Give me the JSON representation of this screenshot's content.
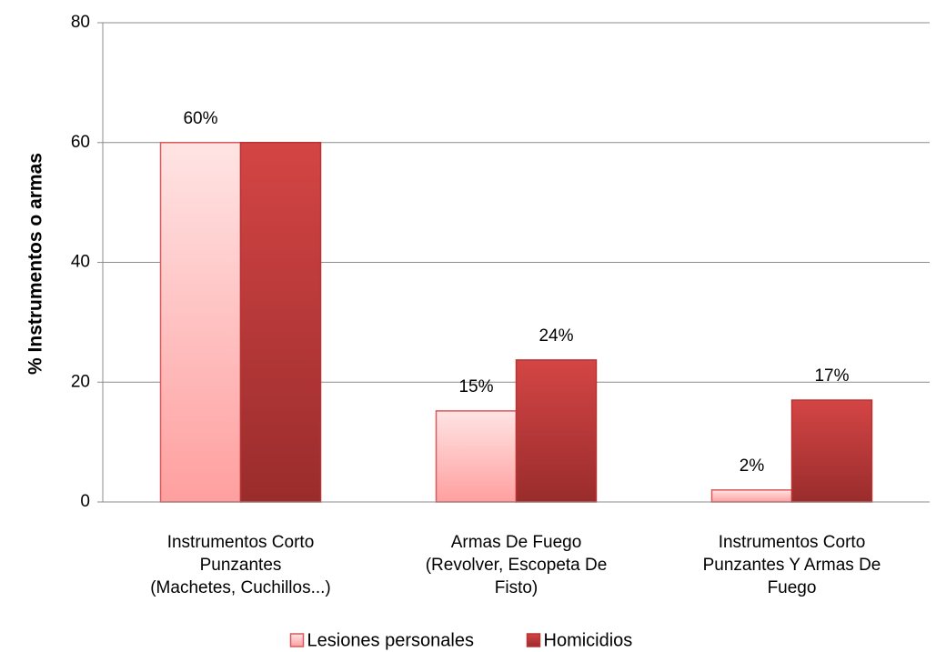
{
  "chart_data": {
    "type": "bar",
    "ylabel": "% Instrumentos o armas",
    "categories": [
      "Instrumentos Corto\nPunzantes\n(Machetes, Cuchillos...)",
      "Armas De Fuego\n(Revolver, Escopeta De\nFisto)",
      "Instrumentos Corto\nPunzantes Y Armas De\nFuego"
    ],
    "series": [
      {
        "name": "Lesiones personales",
        "color": "#ff9f9f",
        "values": [
          60,
          15.2,
          2
        ],
        "value_labels": [
          "60%",
          "15%",
          "2%"
        ]
      },
      {
        "name": "Homicidios",
        "color": "#c93a3a",
        "values": [
          60,
          23.7,
          17
        ],
        "value_labels": [
          null,
          "24%",
          "17%"
        ]
      }
    ],
    "ylim": [
      0,
      80
    ],
    "yticks": [
      0,
      20,
      40,
      60,
      80
    ],
    "grid": true,
    "legend": "bottom"
  }
}
